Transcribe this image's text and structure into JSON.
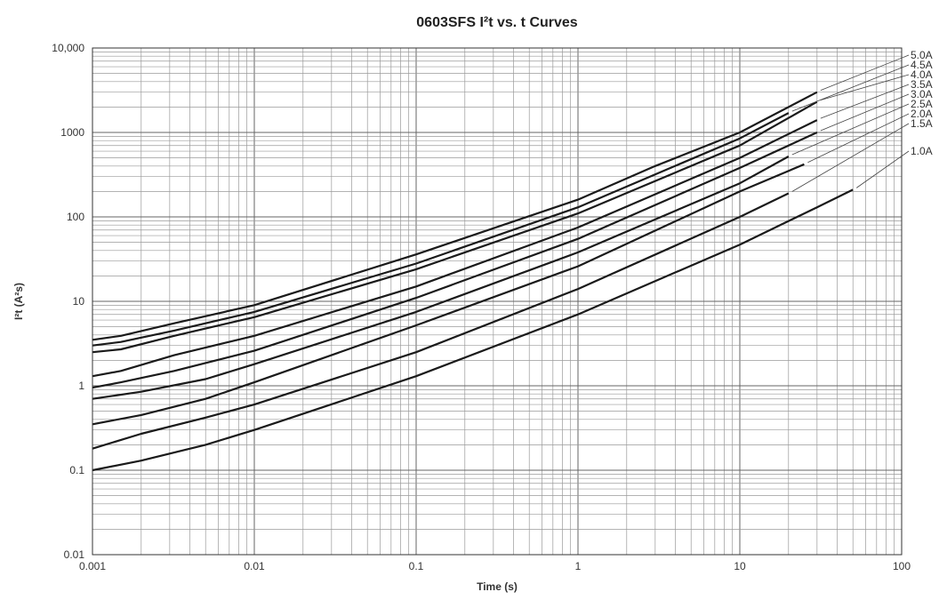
{
  "chart_data": {
    "type": "line",
    "title": "0603SFS I²t  vs. t Curves",
    "xlabel": "Time (s)",
    "ylabel": "I²t (A²s)",
    "x_scale": "log",
    "y_scale": "log",
    "xlim": [
      0.001,
      100
    ],
    "ylim": [
      0.01,
      10000
    ],
    "x_ticks": [
      "0.001",
      "0.01",
      "0.1",
      "1",
      "10",
      "100"
    ],
    "y_ticks": [
      "0.01",
      "0.1",
      "1",
      "10",
      "100",
      "1000",
      "10,000"
    ],
    "grid": true,
    "legend": "right",
    "series": [
      {
        "name": "5.0A",
        "x": [
          0.001,
          0.0015,
          0.0032,
          0.01,
          0.1,
          1,
          3,
          10,
          30
        ],
        "y": [
          3.5,
          3.9,
          5.5,
          9.0,
          36,
          160,
          400,
          1000,
          3000
        ]
      },
      {
        "name": "4.5A",
        "x": [
          0.001,
          0.0015,
          0.0032,
          0.01,
          0.1,
          1,
          10,
          20
        ],
        "y": [
          3.0,
          3.3,
          4.5,
          7.5,
          28,
          130,
          850,
          1700
        ]
      },
      {
        "name": "4.0A",
        "x": [
          0.001,
          0.0015,
          0.0032,
          0.01,
          0.1,
          1,
          10,
          30
        ],
        "y": [
          2.5,
          2.7,
          3.9,
          6.5,
          24,
          110,
          700,
          2300
        ]
      },
      {
        "name": "3.5A",
        "x": [
          0.001,
          0.0015,
          0.0032,
          0.01,
          0.1,
          1,
          10,
          30
        ],
        "y": [
          1.3,
          1.5,
          2.3,
          3.9,
          15,
          75,
          500,
          1400
        ]
      },
      {
        "name": "3.0A",
        "x": [
          0.001,
          0.0015,
          0.0032,
          0.01,
          0.1,
          1,
          10,
          30
        ],
        "y": [
          0.95,
          1.1,
          1.5,
          2.6,
          11,
          55,
          380,
          1000
        ]
      },
      {
        "name": "2.5A",
        "x": [
          0.001,
          0.002,
          0.005,
          0.01,
          0.1,
          1,
          10,
          20
        ],
        "y": [
          0.7,
          0.85,
          1.2,
          1.8,
          7.5,
          38,
          250,
          520
        ]
      },
      {
        "name": "2.0A",
        "x": [
          0.001,
          0.002,
          0.005,
          0.01,
          0.1,
          1,
          10,
          25
        ],
        "y": [
          0.35,
          0.45,
          0.7,
          1.1,
          5.2,
          26,
          200,
          420
        ]
      },
      {
        "name": "1.5A",
        "x": [
          0.001,
          0.002,
          0.005,
          0.01,
          0.1,
          1,
          10,
          20
        ],
        "y": [
          0.18,
          0.27,
          0.42,
          0.6,
          2.5,
          14,
          100,
          190
        ]
      },
      {
        "name": "1.0A",
        "x": [
          0.001,
          0.002,
          0.005,
          0.01,
          0.1,
          1,
          10,
          30,
          50
        ],
        "y": [
          0.1,
          0.13,
          0.2,
          0.3,
          1.3,
          7,
          47,
          130,
          210
        ]
      }
    ]
  }
}
